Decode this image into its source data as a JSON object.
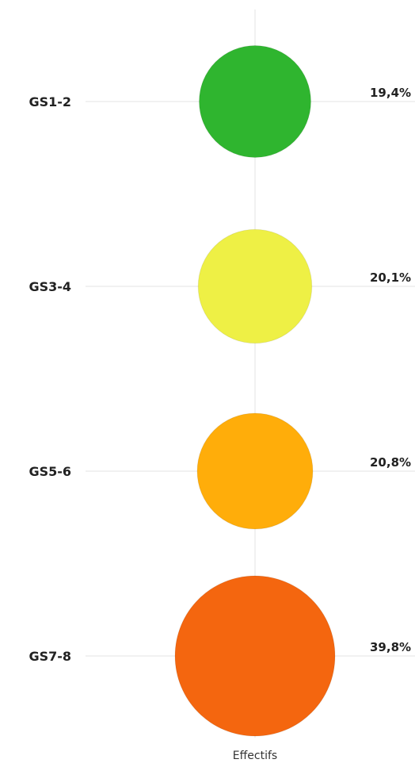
{
  "chart_data": {
    "type": "bubble",
    "categories": [
      "GS1-2",
      "GS3-4",
      "GS5-6",
      "GS7-8"
    ],
    "series": [
      {
        "name": "Effectifs",
        "values": [
          19.4,
          20.1,
          20.8,
          39.8
        ],
        "value_labels": [
          "19,4%",
          "20,1%",
          "20,8%",
          "39,8%"
        ],
        "colors": [
          "#2fb52f",
          "#eef045",
          "#ffad0a",
          "#f4660f"
        ]
      }
    ],
    "xlabel": "Effectifs",
    "ylabel": "",
    "legend": "none",
    "grid": true
  }
}
